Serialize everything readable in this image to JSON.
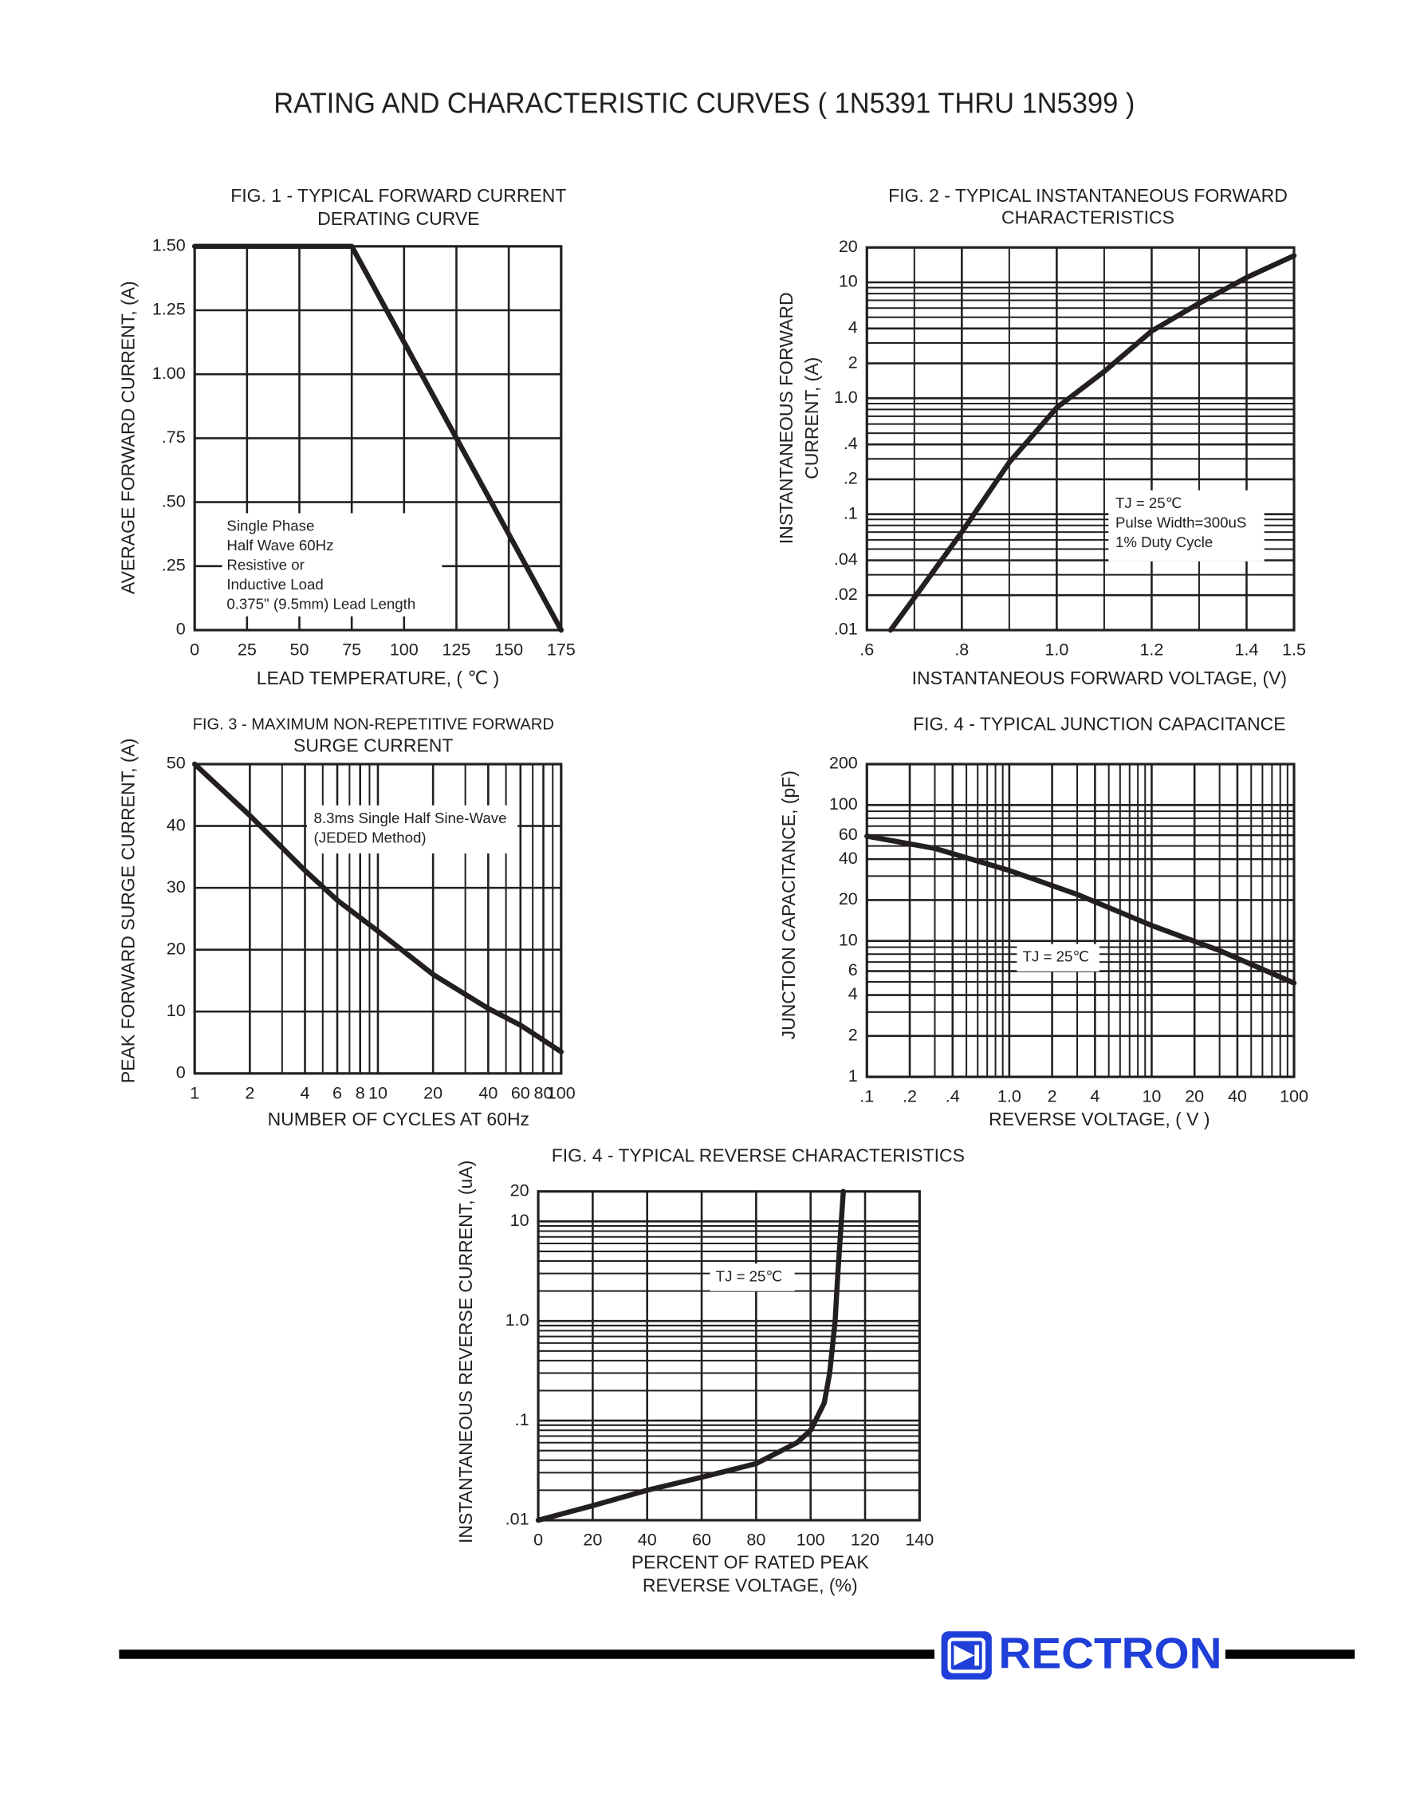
{
  "header": {
    "title": "RATING AND CHARACTERISTIC CURVES ( 1N5391 THRU 1N5399 )"
  },
  "footer": {
    "brand": "RECTRON"
  },
  "chart_data": [
    {
      "type": "line",
      "title": [
        "FIG. 1 - TYPICAL FORWARD CURRENT",
        "DERATING CURVE"
      ],
      "xlabel": "LEAD TEMPERATURE, ( ℃ )",
      "ylabel": "AVERAGE FORWARD  CURRENT, (A)",
      "x": [
        0,
        75,
        175
      ],
      "values": [
        1.5,
        1.5,
        0
      ],
      "color": "#231f20",
      "xlim": [
        0,
        175
      ],
      "ylim": [
        0,
        1.5
      ],
      "xticks": [
        0,
        25,
        50,
        75,
        100,
        125,
        150,
        175
      ],
      "yticks": [
        0,
        {
          "value": 0.25,
          "label": ".25"
        },
        {
          "value": 0.5,
          "label": ".50"
        },
        {
          "value": 0.75,
          "label": ".75"
        },
        {
          "value": 1,
          "label": "1.00"
        },
        {
          "value": 1.25,
          "label": "1.25"
        },
        {
          "value": 1.5,
          "label": "1.50"
        }
      ],
      "grid": true,
      "annotations": [
        "Single Phase",
        "Half Wave 60Hz",
        "Resistive or",
        "Inductive Load",
        "0.375\" (9.5mm) Lead Length"
      ]
    },
    {
      "type": "line",
      "title": [
        "FIG. 2 - TYPICAL INSTANTANEOUS FORWARD",
        "CHARACTERISTICS"
      ],
      "xlabel": "INSTANTANEOUS FORWARD VOLTAGE, (V)",
      "ylabel": [
        "INSTANTANEOUS FORWARD",
        "CURRENT, (A)"
      ],
      "x": [
        0.65,
        0.7,
        0.8,
        0.9,
        1.0,
        1.1,
        1.2,
        1.3,
        1.4,
        1.5
      ],
      "values": [
        0.01,
        0.019,
        0.07,
        0.28,
        0.83,
        1.7,
        3.8,
        6.6,
        11,
        17
      ],
      "color": "#231f20",
      "xlim": [
        0.6,
        1.5
      ],
      "ylim": [
        0.01,
        20
      ],
      "yscale": "log",
      "xticks": [
        {
          "value": 0.6,
          "label": ".6"
        },
        {
          "value": 0.8,
          "label": ".8"
        },
        {
          "value": 1,
          "label": "1.0"
        },
        {
          "value": 1.2,
          "label": "1.2"
        },
        {
          "value": 1.4,
          "label": "1.4"
        },
        1.5
      ],
      "yticks": [
        {
          "value": 0.01,
          "label": ".01"
        },
        {
          "value": 0.02,
          "label": ".02"
        },
        {
          "value": 0.04,
          "label": ".04"
        },
        {
          "value": 0.1,
          "label": ".1"
        },
        {
          "value": 0.2,
          "label": ".2"
        },
        {
          "value": 0.4,
          "label": ".4"
        },
        {
          "value": 1,
          "label": "1.0"
        },
        2,
        4,
        10,
        20
      ],
      "xminor": [
        0.7,
        0.9,
        1.1,
        1.3
      ],
      "yminor": [
        0.03,
        0.05,
        0.06,
        0.07,
        0.08,
        0.09,
        0.3,
        0.5,
        0.6,
        0.7,
        0.8,
        0.9,
        3,
        5,
        6,
        7,
        8,
        9
      ],
      "grid": true,
      "annotations": [
        "TJ = 25℃",
        "Pulse Width=300uS",
        "1% Duty Cycle"
      ]
    },
    {
      "type": "line",
      "title": [
        "FIG. 3 - MAXIMUM NON-REPETITIVE FORWARD",
        "SURGE CURRENT"
      ],
      "xlabel": "NUMBER OF CYCLES AT 60Hz",
      "ylabel": "PEAK FORWARD SURGE CURRENT, (A)",
      "x": [
        1,
        2,
        4,
        6,
        10,
        20,
        40,
        60,
        100
      ],
      "values": [
        50,
        41.7,
        32.8,
        28,
        23,
        16,
        10.5,
        7.8,
        3.5
      ],
      "color": "#231f20",
      "xlim": [
        1,
        100
      ],
      "ylim": [
        0,
        50
      ],
      "xscale": "log",
      "xticks": [
        1,
        2,
        4,
        6,
        8,
        10,
        20,
        40,
        60,
        80,
        100
      ],
      "yticks": [
        0,
        10,
        20,
        30,
        40,
        50
      ],
      "xminor": [
        3,
        5,
        7,
        9,
        30,
        50,
        70,
        90
      ],
      "grid": true,
      "annotations": [
        "8.3ms Single Half Sine-Wave",
        "(JEDED Method)"
      ]
    },
    {
      "type": "line",
      "title": [
        "FIG. 4 - TYPICAL JUNCTION CAPACITANCE"
      ],
      "xlabel": "REVERSE VOLTAGE, ( V )",
      "ylabel": "JUNCTION CAPACITANCE, (pF)",
      "x": [
        0.1,
        0.3,
        1,
        3,
        10,
        30,
        100
      ],
      "values": [
        59,
        48,
        33,
        22,
        13,
        8.5,
        4.9
      ],
      "color": "#231f20",
      "xlim": [
        0.1,
        100
      ],
      "ylim": [
        1,
        200
      ],
      "xscale": "log",
      "yscale": "log",
      "xticks": [
        {
          "value": 0.1,
          "label": ".1"
        },
        {
          "value": 0.2,
          "label": ".2"
        },
        {
          "value": 0.4,
          "label": ".4"
        },
        {
          "value": 1,
          "label": "1.0"
        },
        2,
        4,
        10,
        20,
        40,
        100
      ],
      "yticks": [
        1,
        2,
        4,
        6,
        10,
        20,
        40,
        60,
        100,
        200
      ],
      "xminor": [
        0.3,
        0.5,
        0.6,
        0.7,
        0.8,
        0.9,
        3,
        5,
        6,
        7,
        8,
        9,
        30,
        50,
        60,
        70,
        80,
        90
      ],
      "yminor": [
        3,
        5,
        7,
        8,
        9,
        30,
        50,
        70,
        80,
        90
      ],
      "grid": true,
      "annotations": [
        "TJ = 25℃"
      ]
    },
    {
      "type": "line",
      "title": [
        "FIG. 4 - TYPICAL REVERSE CHARACTERISTICS"
      ],
      "xlabel": [
        "PERCENT OF RATED PEAK",
        "REVERSE VOLTAGE, (%)"
      ],
      "ylabel": "INSTANTANEOUS REVERSE CURRENT, (uA)",
      "x": [
        0,
        20,
        40,
        60,
        80,
        95,
        100,
        105,
        107,
        109,
        110,
        112
      ],
      "values": [
        0.01,
        0.014,
        0.02,
        0.027,
        0.037,
        0.06,
        0.08,
        0.15,
        0.3,
        1,
        3,
        20
      ],
      "color": "#231f20",
      "xlim": [
        0,
        140
      ],
      "ylim": [
        0.01,
        20
      ],
      "yscale": "log",
      "xticks": [
        0,
        20,
        40,
        60,
        80,
        100,
        120,
        140
      ],
      "yticks": [
        {
          "value": 0.01,
          "label": ".01"
        },
        {
          "value": 0.1,
          "label": ".1"
        },
        {
          "value": 1,
          "label": "1.0"
        },
        10,
        20
      ],
      "yminor": [
        0.02,
        0.03,
        0.04,
        0.05,
        0.06,
        0.07,
        0.08,
        0.09,
        0.2,
        0.3,
        0.4,
        0.5,
        0.6,
        0.7,
        0.8,
        0.9,
        2,
        3,
        4,
        5,
        6,
        7,
        8,
        9
      ],
      "grid": true,
      "annotations": [
        "TJ = 25℃"
      ]
    }
  ]
}
